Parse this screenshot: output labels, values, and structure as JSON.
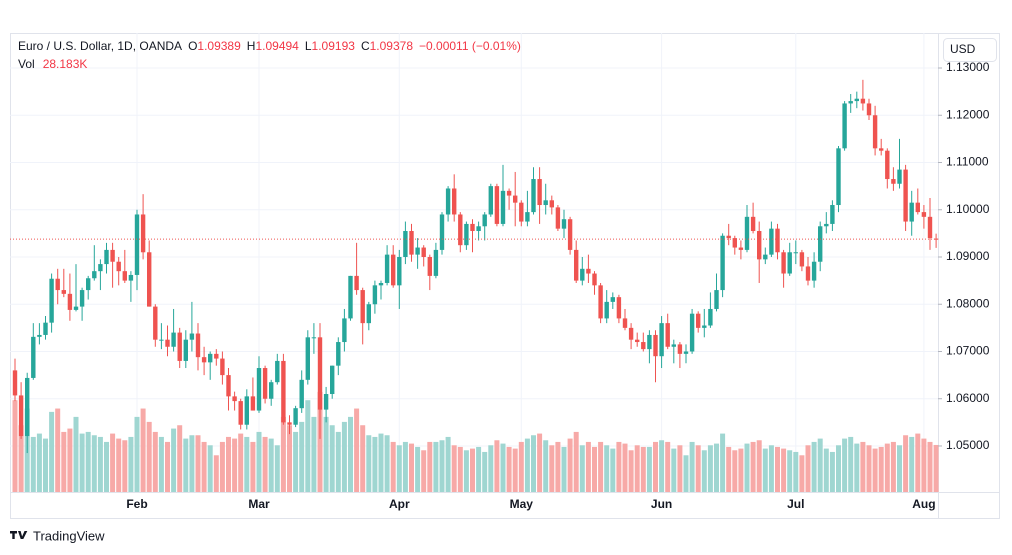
{
  "chart_data": {
    "type": "candlestick",
    "title": "Euro / U.S. Dollar, 1D, OANDA",
    "legend_labels": {
      "open": "O",
      "high": "H",
      "low": "L",
      "close": "C",
      "volume": "Vol"
    },
    "change_label": "−0.00011 (−0.01%)",
    "volume_label": "28.183K",
    "currency": "USD",
    "brand": "TradingView",
    "up_color": "#26a69a",
    "down_color": "#ef5350",
    "up_volume_color": "#9fd6d1",
    "down_volume_color": "#f7a9a7",
    "grid": true,
    "categories": [
      null,
      null,
      null,
      null,
      null,
      null,
      null,
      null,
      null,
      null,
      null,
      null,
      null,
      null,
      null,
      null,
      null,
      null,
      null,
      null,
      "Feb",
      null,
      null,
      null,
      null,
      null,
      null,
      null,
      null,
      null,
      null,
      null,
      null,
      null,
      null,
      null,
      null,
      null,
      null,
      null,
      "Mar",
      null,
      null,
      null,
      null,
      null,
      null,
      null,
      null,
      null,
      null,
      null,
      null,
      null,
      null,
      null,
      null,
      null,
      null,
      null,
      null,
      null,
      null,
      "Apr",
      null,
      null,
      null,
      null,
      null,
      null,
      null,
      null,
      null,
      null,
      null,
      null,
      null,
      null,
      null,
      null,
      null,
      null,
      null,
      "May",
      null,
      null,
      null,
      null,
      null,
      null,
      null,
      null,
      null,
      null,
      null,
      null,
      null,
      null,
      null,
      null,
      null,
      null,
      null,
      null,
      null,
      null,
      "Jun",
      null,
      null,
      null,
      null,
      null,
      null,
      null,
      null,
      null,
      null,
      null,
      null,
      null,
      null,
      null,
      null,
      null,
      null,
      null,
      null,
      null,
      "Jul",
      null,
      null,
      null,
      null,
      null,
      null,
      null,
      null,
      null,
      null,
      null,
      null,
      null,
      null,
      null,
      null,
      null,
      null,
      null,
      null,
      "Aug",
      null,
      null
    ],
    "open": [
      1.066,
      1.0607,
      1.0521,
      1.0644,
      1.0731,
      1.0735,
      1.0761,
      1.0854,
      1.083,
      1.0822,
      1.0788,
      1.0795,
      1.083,
      1.0855,
      1.087,
      1.0885,
      1.0915,
      1.089,
      1.087,
      1.085,
      1.0862,
      1.099,
      1.091,
      1.0795,
      1.0725,
      1.0725,
      1.071,
      1.074,
      1.068,
      1.0725,
      1.0738,
      1.0688,
      1.0677,
      1.0695,
      1.0685,
      1.065,
      1.0605,
      1.0595,
      1.0545,
      1.0605,
      1.0575,
      1.0665,
      1.06,
      1.0635,
      1.068,
      1.055,
      1.0545,
      1.058,
      1.064,
      1.073,
      1.073,
      1.0577,
      1.061,
      1.067,
      1.072,
      1.077,
      1.086,
      1.083,
      1.076,
      1.08,
      1.084,
      1.0845,
      1.0905,
      1.084,
      1.09,
      1.0955,
      1.0905,
      1.092,
      1.09,
      1.086,
      1.0915,
      1.099,
      1.1045,
      1.099,
      1.0925,
      1.097,
      1.0955,
      1.0965,
      1.099,
      1.105,
      1.097,
      1.104,
      1.103,
      1.1015,
      1.0975,
      1.0995,
      1.1065,
      1.101,
      1.102,
      1.1005,
      1.096,
      1.098,
      1.0915,
      1.085,
      1.0875,
      1.0865,
      1.084,
      1.077,
      1.0805,
      1.0815,
      1.077,
      1.075,
      1.0725,
      1.072,
      1.0705,
      1.0735,
      1.069,
      1.076,
      1.071,
      1.0715,
      1.0695,
      1.07,
      1.078,
      1.075,
      1.0755,
      1.079,
      1.083,
      1.0945,
      1.094,
      1.092,
      1.0915,
      1.0985,
      1.0955,
      1.0895,
      1.0905,
      1.096,
      1.091,
      1.0865,
      1.091,
      1.091,
      1.088,
      1.085,
      1.089,
      1.0965,
      1.097,
      1.101,
      1.113,
      1.1225,
      1.123,
      1.1235,
      1.1225,
      1.12,
      1.113,
      1.1125,
      1.1065,
      1.1055,
      1.1085,
      1.0975,
      1.1015,
      1.0995,
      1.0985,
      1.09389
    ],
    "high": [
      1.0685,
      1.0635,
      1.0655,
      1.076,
      1.076,
      1.0775,
      1.0865,
      1.0875,
      1.0875,
      1.0865,
      1.0885,
      1.0835,
      1.086,
      1.0925,
      1.0895,
      1.093,
      1.093,
      1.09,
      1.0915,
      1.087,
      1.1,
      1.1033,
      1.0935,
      1.08,
      1.076,
      1.0755,
      1.079,
      1.075,
      1.0745,
      1.0805,
      1.076,
      1.071,
      1.07,
      1.0705,
      1.07,
      1.0665,
      1.0615,
      1.06,
      1.062,
      1.0645,
      1.069,
      1.067,
      1.064,
      1.0695,
      1.0695,
      1.0565,
      1.0585,
      1.066,
      1.0745,
      1.076,
      1.076,
      1.0625,
      1.067,
      1.073,
      1.079,
      1.086,
      1.093,
      1.0835,
      1.0805,
      1.085,
      1.085,
      1.0925,
      1.0925,
      1.0915,
      1.0975,
      1.097,
      1.094,
      1.0925,
      1.0905,
      1.093,
      1.0995,
      1.105,
      1.1075,
      1.0995,
      1.0975,
      1.098,
      1.0975,
      1.0995,
      1.1055,
      1.1055,
      1.1095,
      1.1045,
      1.108,
      1.102,
      1.104,
      1.109,
      1.109,
      1.1055,
      1.103,
      1.101,
      1.1,
      1.0985,
      1.0935,
      1.09,
      1.0905,
      1.087,
      1.0845,
      1.083,
      1.0825,
      1.082,
      1.079,
      1.076,
      1.074,
      1.074,
      1.0745,
      1.0745,
      1.0775,
      1.078,
      1.0725,
      1.072,
      1.0715,
      1.079,
      1.0785,
      1.079,
      1.0825,
      1.0865,
      1.095,
      1.097,
      1.0945,
      1.0935,
      1.101,
      1.1015,
      1.0975,
      1.092,
      1.0975,
      1.097,
      1.0915,
      1.093,
      1.0935,
      1.0915,
      1.09,
      1.091,
      1.0975,
      1.0995,
      1.102,
      1.1135,
      1.123,
      1.1245,
      1.125,
      1.1275,
      1.1235,
      1.122,
      1.115,
      1.113,
      1.109,
      1.115,
      1.1095,
      1.104,
      1.1045,
      1.101,
      1.1025,
      1.09494
    ],
    "low": [
      1.0595,
      1.0515,
      1.0485,
      1.064,
      1.0715,
      1.0725,
      1.074,
      1.08,
      1.0815,
      1.0765,
      1.0785,
      1.0765,
      1.081,
      1.085,
      1.083,
      1.0865,
      1.0835,
      1.084,
      1.0845,
      1.0805,
      1.083,
      1.0895,
      1.0795,
      1.071,
      1.0705,
      1.069,
      1.07,
      1.0665,
      1.0665,
      1.07,
      1.066,
      1.065,
      1.064,
      1.067,
      1.063,
      1.0575,
      1.0575,
      1.0535,
      1.0535,
      1.0575,
      1.057,
      1.059,
      1.0585,
      1.063,
      1.0545,
      1.0525,
      1.054,
      1.057,
      1.063,
      1.0695,
      1.0515,
      1.055,
      1.06,
      1.065,
      1.07,
      1.0765,
      1.082,
      1.0715,
      1.0745,
      1.078,
      1.081,
      1.084,
      1.0835,
      1.079,
      1.0885,
      1.089,
      1.0875,
      1.088,
      1.083,
      1.0855,
      1.0905,
      1.0975,
      1.0975,
      1.091,
      1.0915,
      1.091,
      1.0935,
      1.0935,
      1.0985,
      1.0965,
      1.0965,
      1.1,
      1.0965,
      1.0965,
      1.0965,
      1.099,
      1.097,
      1.099,
      1.099,
      1.0955,
      1.094,
      1.0905,
      1.0845,
      1.084,
      1.0845,
      1.082,
      1.076,
      1.076,
      1.079,
      1.076,
      1.0745,
      1.0705,
      1.071,
      1.07,
      1.0675,
      1.0635,
      1.0665,
      1.0705,
      1.0675,
      1.0665,
      1.0675,
      1.0695,
      1.074,
      1.073,
      1.075,
      1.0785,
      1.0815,
      1.0925,
      1.0905,
      1.0895,
      1.091,
      1.095,
      1.0845,
      1.0885,
      1.09,
      1.0895,
      1.0835,
      1.086,
      1.0885,
      1.087,
      1.084,
      1.0835,
      1.087,
      1.095,
      1.0955,
      1.0995,
      1.1125,
      1.1205,
      1.1215,
      1.121,
      1.119,
      1.1115,
      1.1115,
      1.1045,
      1.104,
      1.1045,
      1.0955,
      1.0945,
      1.099,
      1.096,
      1.0915,
      1.09193
    ],
    "close": [
      1.0607,
      1.0521,
      1.0644,
      1.0731,
      1.0735,
      1.0761,
      1.0854,
      1.083,
      1.0822,
      1.0788,
      1.0795,
      1.083,
      1.0855,
      1.087,
      1.0885,
      1.0915,
      1.089,
      1.087,
      1.085,
      1.0862,
      1.099,
      1.091,
      1.0795,
      1.0725,
      1.0725,
      1.071,
      1.074,
      1.068,
      1.0725,
      1.0738,
      1.0688,
      1.0677,
      1.0695,
      1.0685,
      1.065,
      1.0605,
      1.0595,
      1.0545,
      1.0605,
      1.0575,
      1.0665,
      1.06,
      1.0635,
      1.068,
      1.055,
      1.0545,
      1.058,
      1.064,
      1.073,
      1.073,
      1.0577,
      1.061,
      1.067,
      1.072,
      1.077,
      1.086,
      1.083,
      1.076,
      1.08,
      1.084,
      1.0845,
      1.0905,
      1.084,
      1.09,
      1.0955,
      1.0905,
      1.092,
      1.09,
      1.086,
      1.0915,
      1.099,
      1.1045,
      1.099,
      1.0925,
      1.097,
      1.0955,
      1.0965,
      1.099,
      1.105,
      1.097,
      1.104,
      1.103,
      1.1015,
      1.0975,
      1.0995,
      1.1065,
      1.101,
      1.102,
      1.1005,
      1.096,
      1.098,
      1.0915,
      1.085,
      1.0875,
      1.0865,
      1.084,
      1.077,
      1.0805,
      1.0815,
      1.077,
      1.075,
      1.0725,
      1.072,
      1.0705,
      1.0735,
      1.069,
      1.076,
      1.071,
      1.0715,
      1.0695,
      1.07,
      1.078,
      1.075,
      1.0755,
      1.079,
      1.083,
      1.0945,
      1.094,
      1.092,
      1.0915,
      1.0985,
      1.0955,
      1.0895,
      1.0905,
      1.096,
      1.091,
      1.0865,
      1.091,
      1.091,
      1.088,
      1.085,
      1.089,
      1.0965,
      1.097,
      1.101,
      1.113,
      1.1225,
      1.123,
      1.1235,
      1.1225,
      1.12,
      1.113,
      1.1125,
      1.1065,
      1.1055,
      1.1085,
      1.0975,
      1.1015,
      1.0995,
      1.0985,
      1.094,
      1.09378
    ],
    "volume": [
      55,
      40,
      50,
      33,
      35,
      32,
      48,
      50,
      36,
      38,
      45,
      35,
      36,
      34,
      33,
      30,
      35,
      32,
      31,
      33,
      45,
      50,
      42,
      36,
      33,
      30,
      38,
      40,
      32,
      34,
      34,
      30,
      28,
      22,
      30,
      33,
      32,
      35,
      33,
      30,
      36,
      33,
      32,
      28,
      45,
      40,
      36,
      42,
      55,
      45,
      60,
      45,
      40,
      36,
      42,
      45,
      50,
      40,
      34,
      33,
      35,
      34,
      30,
      28,
      30,
      29,
      27,
      25,
      30,
      30,
      31,
      33,
      28,
      27,
      25,
      26,
      27,
      24,
      28,
      31,
      29,
      27,
      26,
      30,
      32,
      34,
      35,
      31,
      28,
      30,
      27,
      32,
      36,
      28,
      30,
      27,
      30,
      28,
      26,
      30,
      29,
      25,
      28,
      27,
      27,
      30,
      31,
      30,
      26,
      28,
      22,
      30,
      28,
      25,
      28,
      29,
      35,
      27,
      25,
      26,
      29,
      30,
      31,
      26,
      28,
      27,
      26,
      25,
      24,
      22,
      28,
      30,
      32,
      26,
      24,
      28,
      32,
      33,
      29,
      30,
      28,
      26,
      27,
      29,
      30,
      28,
      34,
      33,
      35,
      32,
      30,
      28.183
    ],
    "ylim": [
      1.04026,
      1.13741
    ],
    "yticks": [
      {
        "value": 1.05,
        "label": "1.05000"
      },
      {
        "value": 1.06,
        "label": "1.06000"
      },
      {
        "value": 1.07,
        "label": "1.07000"
      },
      {
        "value": 1.08,
        "label": "1.08000"
      },
      {
        "value": 1.09,
        "label": "1.09000"
      },
      {
        "value": 1.1,
        "label": "1.10000"
      },
      {
        "value": 1.11,
        "label": "1.11000"
      },
      {
        "value": 1.12,
        "label": "1.12000"
      },
      {
        "value": 1.13,
        "label": "1.13000"
      }
    ],
    "volume_lim": [
      0,
      275
    ]
  }
}
